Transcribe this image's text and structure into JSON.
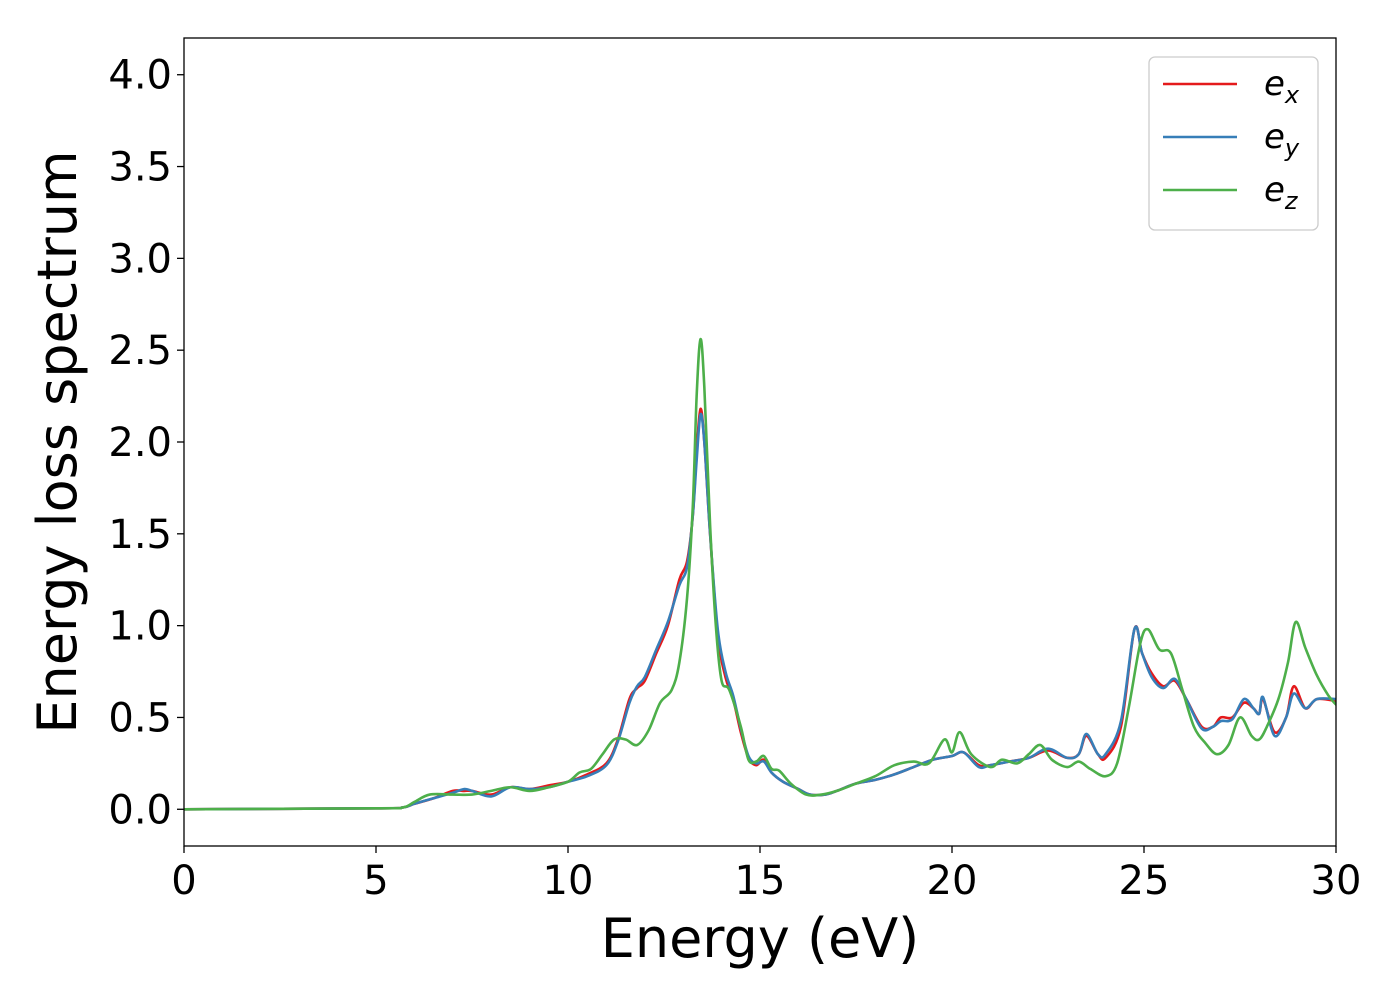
{
  "chart_data": {
    "type": "line",
    "title": "",
    "xlabel": "Energy (eV)",
    "ylabel": "Energy loss spectrum",
    "xlim": [
      0,
      30
    ],
    "ylim": [
      -0.2,
      4.2
    ],
    "xticks": [
      0,
      5,
      10,
      15,
      20,
      25,
      30
    ],
    "xtick_labels": [
      "0",
      "5",
      "10",
      "15",
      "20",
      "25",
      "30"
    ],
    "yticks": [
      0.0,
      0.5,
      1.0,
      1.5,
      2.0,
      2.5,
      3.0,
      3.5,
      4.0
    ],
    "ytick_labels": [
      "0.0",
      "0.5",
      "1.0",
      "1.5",
      "2.0",
      "2.5",
      "3.0",
      "3.5",
      "4.0"
    ],
    "grid": false,
    "legend_position": "top-right",
    "series": [
      {
        "name": "e_x",
        "legend_base": "e",
        "legend_sub": "x",
        "color": "#e41a1c",
        "points": [
          [
            0,
            0
          ],
          [
            5,
            0.005
          ],
          [
            5.7,
            0.01
          ],
          [
            6,
            0.03
          ],
          [
            6.5,
            0.06
          ],
          [
            7,
            0.1
          ],
          [
            7.3,
            0.1
          ],
          [
            7.5,
            0.1
          ],
          [
            8,
            0.08
          ],
          [
            8.5,
            0.12
          ],
          [
            9,
            0.11
          ],
          [
            9.5,
            0.13
          ],
          [
            10,
            0.15
          ],
          [
            10.5,
            0.19
          ],
          [
            11,
            0.25
          ],
          [
            11.3,
            0.38
          ],
          [
            11.6,
            0.6
          ],
          [
            11.8,
            0.66
          ],
          [
            12,
            0.7
          ],
          [
            12.3,
            0.85
          ],
          [
            12.6,
            1.0
          ],
          [
            12.9,
            1.25
          ],
          [
            13.1,
            1.35
          ],
          [
            13.25,
            1.6
          ],
          [
            13.35,
            1.95
          ],
          [
            13.45,
            2.18
          ],
          [
            13.55,
            2.0
          ],
          [
            13.7,
            1.5
          ],
          [
            13.9,
            0.95
          ],
          [
            14.1,
            0.72
          ],
          [
            14.3,
            0.6
          ],
          [
            14.5,
            0.42
          ],
          [
            14.7,
            0.28
          ],
          [
            14.9,
            0.24
          ],
          [
            15.1,
            0.27
          ],
          [
            15.3,
            0.2
          ],
          [
            15.6,
            0.15
          ],
          [
            16,
            0.11
          ],
          [
            16.3,
            0.08
          ],
          [
            16.7,
            0.08
          ],
          [
            17,
            0.1
          ],
          [
            17.5,
            0.14
          ],
          [
            18,
            0.16
          ],
          [
            18.5,
            0.19
          ],
          [
            19,
            0.23
          ],
          [
            19.5,
            0.27
          ],
          [
            20,
            0.29
          ],
          [
            20.3,
            0.31
          ],
          [
            20.7,
            0.24
          ],
          [
            21,
            0.24
          ],
          [
            21.5,
            0.26
          ],
          [
            22,
            0.28
          ],
          [
            22.5,
            0.32
          ],
          [
            23,
            0.28
          ],
          [
            23.3,
            0.3
          ],
          [
            23.5,
            0.4
          ],
          [
            23.8,
            0.3
          ],
          [
            24,
            0.28
          ],
          [
            24.4,
            0.45
          ],
          [
            24.75,
            0.98
          ],
          [
            24.95,
            0.85
          ],
          [
            25.2,
            0.74
          ],
          [
            25.5,
            0.67
          ],
          [
            25.8,
            0.7
          ],
          [
            26.1,
            0.6
          ],
          [
            26.5,
            0.45
          ],
          [
            26.8,
            0.45
          ],
          [
            27,
            0.5
          ],
          [
            27.3,
            0.5
          ],
          [
            27.6,
            0.58
          ],
          [
            27.85,
            0.55
          ],
          [
            28.0,
            0.52
          ],
          [
            28.1,
            0.6
          ],
          [
            28.4,
            0.42
          ],
          [
            28.7,
            0.5
          ],
          [
            28.9,
            0.67
          ],
          [
            29.2,
            0.55
          ],
          [
            29.5,
            0.6
          ],
          [
            30,
            0.59
          ]
        ]
      },
      {
        "name": "e_y",
        "legend_base": "e",
        "legend_sub": "y",
        "color": "#377eb8",
        "points": [
          [
            0,
            0
          ],
          [
            5,
            0.005
          ],
          [
            5.7,
            0.01
          ],
          [
            6,
            0.03
          ],
          [
            6.5,
            0.06
          ],
          [
            7,
            0.09
          ],
          [
            7.3,
            0.11
          ],
          [
            7.5,
            0.1
          ],
          [
            8,
            0.07
          ],
          [
            8.5,
            0.12
          ],
          [
            9,
            0.11
          ],
          [
            9.5,
            0.12
          ],
          [
            10,
            0.15
          ],
          [
            10.5,
            0.18
          ],
          [
            11,
            0.24
          ],
          [
            11.3,
            0.37
          ],
          [
            11.6,
            0.58
          ],
          [
            11.8,
            0.67
          ],
          [
            12,
            0.72
          ],
          [
            12.3,
            0.87
          ],
          [
            12.6,
            1.02
          ],
          [
            12.9,
            1.22
          ],
          [
            13.1,
            1.32
          ],
          [
            13.25,
            1.6
          ],
          [
            13.35,
            1.9
          ],
          [
            13.45,
            2.15
          ],
          [
            13.55,
            2.0
          ],
          [
            13.7,
            1.5
          ],
          [
            13.9,
            0.98
          ],
          [
            14.1,
            0.75
          ],
          [
            14.3,
            0.62
          ],
          [
            14.5,
            0.44
          ],
          [
            14.7,
            0.29
          ],
          [
            14.9,
            0.25
          ],
          [
            15.1,
            0.26
          ],
          [
            15.3,
            0.2
          ],
          [
            15.6,
            0.15
          ],
          [
            16,
            0.11
          ],
          [
            16.3,
            0.08
          ],
          [
            16.7,
            0.08
          ],
          [
            17,
            0.1
          ],
          [
            17.5,
            0.14
          ],
          [
            18,
            0.16
          ],
          [
            18.5,
            0.19
          ],
          [
            19,
            0.23
          ],
          [
            19.5,
            0.27
          ],
          [
            20,
            0.29
          ],
          [
            20.3,
            0.31
          ],
          [
            20.7,
            0.23
          ],
          [
            21,
            0.24
          ],
          [
            21.5,
            0.26
          ],
          [
            22,
            0.28
          ],
          [
            22.5,
            0.33
          ],
          [
            23,
            0.28
          ],
          [
            23.3,
            0.3
          ],
          [
            23.5,
            0.41
          ],
          [
            23.8,
            0.3
          ],
          [
            24,
            0.3
          ],
          [
            24.4,
            0.48
          ],
          [
            24.75,
            0.98
          ],
          [
            24.95,
            0.85
          ],
          [
            25.2,
            0.72
          ],
          [
            25.5,
            0.66
          ],
          [
            25.8,
            0.71
          ],
          [
            26.1,
            0.6
          ],
          [
            26.5,
            0.44
          ],
          [
            26.8,
            0.45
          ],
          [
            27,
            0.48
          ],
          [
            27.3,
            0.49
          ],
          [
            27.6,
            0.6
          ],
          [
            27.85,
            0.55
          ],
          [
            28.0,
            0.52
          ],
          [
            28.1,
            0.61
          ],
          [
            28.4,
            0.4
          ],
          [
            28.7,
            0.5
          ],
          [
            28.9,
            0.63
          ],
          [
            29.2,
            0.55
          ],
          [
            29.5,
            0.6
          ],
          [
            30,
            0.6
          ]
        ]
      },
      {
        "name": "e_z",
        "legend_base": "e",
        "legend_sub": "z",
        "color": "#4daf4a",
        "points": [
          [
            0,
            0
          ],
          [
            5,
            0.005
          ],
          [
            5.7,
            0.01
          ],
          [
            6,
            0.04
          ],
          [
            6.4,
            0.08
          ],
          [
            7,
            0.08
          ],
          [
            7.5,
            0.08
          ],
          [
            8,
            0.1
          ],
          [
            8.5,
            0.12
          ],
          [
            9,
            0.1
          ],
          [
            9.5,
            0.12
          ],
          [
            10,
            0.15
          ],
          [
            10.3,
            0.2
          ],
          [
            10.6,
            0.22
          ],
          [
            10.9,
            0.3
          ],
          [
            11.2,
            0.38
          ],
          [
            11.5,
            0.38
          ],
          [
            11.8,
            0.35
          ],
          [
            12.1,
            0.43
          ],
          [
            12.4,
            0.58
          ],
          [
            12.7,
            0.65
          ],
          [
            12.9,
            0.8
          ],
          [
            13.1,
            1.15
          ],
          [
            13.25,
            1.65
          ],
          [
            13.35,
            2.25
          ],
          [
            13.45,
            2.56
          ],
          [
            13.55,
            2.3
          ],
          [
            13.7,
            1.55
          ],
          [
            13.85,
            1.0
          ],
          [
            14.0,
            0.7
          ],
          [
            14.2,
            0.65
          ],
          [
            14.5,
            0.45
          ],
          [
            14.7,
            0.27
          ],
          [
            14.9,
            0.26
          ],
          [
            15.1,
            0.29
          ],
          [
            15.3,
            0.22
          ],
          [
            15.5,
            0.21
          ],
          [
            15.8,
            0.14
          ],
          [
            16.2,
            0.08
          ],
          [
            16.6,
            0.08
          ],
          [
            17,
            0.1
          ],
          [
            17.5,
            0.14
          ],
          [
            18,
            0.18
          ],
          [
            18.5,
            0.24
          ],
          [
            19,
            0.26
          ],
          [
            19.4,
            0.25
          ],
          [
            19.8,
            0.38
          ],
          [
            20.0,
            0.31
          ],
          [
            20.2,
            0.42
          ],
          [
            20.5,
            0.3
          ],
          [
            21,
            0.23
          ],
          [
            21.3,
            0.27
          ],
          [
            21.7,
            0.25
          ],
          [
            22,
            0.3
          ],
          [
            22.3,
            0.35
          ],
          [
            22.6,
            0.27
          ],
          [
            23,
            0.23
          ],
          [
            23.3,
            0.26
          ],
          [
            23.6,
            0.22
          ],
          [
            24,
            0.18
          ],
          [
            24.3,
            0.25
          ],
          [
            24.6,
            0.55
          ],
          [
            24.9,
            0.9
          ],
          [
            25.1,
            0.98
          ],
          [
            25.4,
            0.87
          ],
          [
            25.7,
            0.85
          ],
          [
            26.0,
            0.65
          ],
          [
            26.3,
            0.45
          ],
          [
            26.6,
            0.36
          ],
          [
            26.9,
            0.3
          ],
          [
            27.2,
            0.35
          ],
          [
            27.5,
            0.5
          ],
          [
            27.8,
            0.4
          ],
          [
            28.0,
            0.38
          ],
          [
            28.2,
            0.45
          ],
          [
            28.5,
            0.6
          ],
          [
            28.75,
            0.8
          ],
          [
            28.95,
            1.02
          ],
          [
            29.2,
            0.88
          ],
          [
            29.5,
            0.73
          ],
          [
            29.8,
            0.62
          ],
          [
            30,
            0.57
          ]
        ]
      }
    ]
  }
}
